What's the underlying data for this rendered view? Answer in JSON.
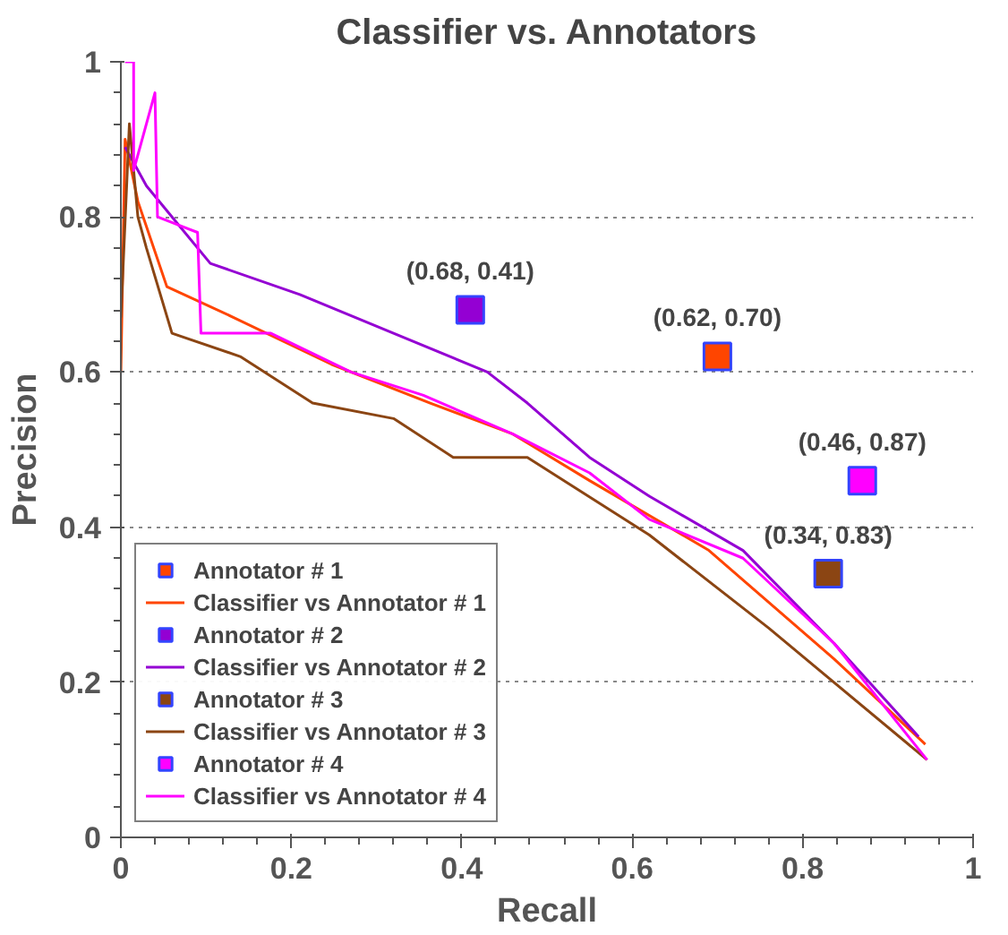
{
  "chart_data": {
    "type": "line",
    "title": "Classifier vs. Annotators",
    "xlabel": "Recall",
    "ylabel": "Precision",
    "xlim": [
      0,
      1
    ],
    "ylim": [
      0,
      1
    ],
    "xticks": [
      0,
      0.2,
      0.4,
      0.6,
      0.8,
      1
    ],
    "yticks": [
      0,
      0.2,
      0.4,
      0.6,
      0.8,
      1
    ],
    "grid": "y",
    "legend": "bottom left",
    "marker": "none",
    "line_style": "solid",
    "series": [
      {
        "name": "Annotator # 1",
        "type": "scatter",
        "marker": "square",
        "color": "#ff4500",
        "x": [
          0.7
        ],
        "values": [
          0.62
        ]
      },
      {
        "name": "Classifier vs Annotator # 1",
        "color": "#ff4500",
        "x": [
          0,
          0.005,
          0.02,
          0.054,
          0.133,
          0.247,
          0.363,
          0.46,
          0.55,
          0.69,
          0.837,
          0.944
        ],
        "values": [
          0.6,
          0.9,
          0.82,
          0.71,
          0.67,
          0.61,
          0.56,
          0.52,
          0.46,
          0.37,
          0.23,
          0.12
        ]
      },
      {
        "name": "Annotator # 2",
        "type": "scatter",
        "marker": "square",
        "color": "#9400d3",
        "x": [
          0.41
        ],
        "values": [
          0.68
        ]
      },
      {
        "name": "Classifier vs Annotator # 2",
        "color": "#9400d3",
        "x": [
          0.005,
          0.03,
          0.105,
          0.21,
          0.32,
          0.43,
          0.477,
          0.55,
          0.62,
          0.73,
          0.837,
          0.936
        ],
        "values": [
          0.89,
          0.84,
          0.74,
          0.7,
          0.65,
          0.6,
          0.56,
          0.49,
          0.44,
          0.37,
          0.25,
          0.13
        ]
      },
      {
        "name": "Annotator # 3",
        "type": "scatter",
        "marker": "square",
        "color": "#8b4513",
        "x": [
          0.83
        ],
        "values": [
          0.34
        ]
      },
      {
        "name": "Classifier vs Annotator # 3",
        "color": "#8b4513",
        "x": [
          0,
          0.01,
          0.02,
          0.03,
          0.06,
          0.14,
          0.225,
          0.32,
          0.39,
          0.477,
          0.62,
          0.76,
          0.946
        ],
        "values": [
          0.67,
          0.92,
          0.8,
          0.76,
          0.65,
          0.62,
          0.56,
          0.54,
          0.49,
          0.49,
          0.39,
          0.27,
          0.1
        ]
      },
      {
        "name": "Annotator # 4",
        "type": "scatter",
        "marker": "square",
        "color": "#ff00ff",
        "x": [
          0.87
        ],
        "values": [
          0.46
        ]
      },
      {
        "name": "Classifier vs Annotator # 4",
        "color": "#ff00ff",
        "x": [
          0.005,
          0.015,
          0.015,
          0.04,
          0.043,
          0.09,
          0.094,
          0.176,
          0.27,
          0.355,
          0.46,
          0.55,
          0.62,
          0.73,
          0.837,
          0.946
        ],
        "values": [
          1,
          1,
          0.86,
          0.96,
          0.8,
          0.78,
          0.65,
          0.65,
          0.6,
          0.57,
          0.52,
          0.47,
          0.41,
          0.36,
          0.25,
          0.1
        ]
      }
    ],
    "annotations": [
      {
        "text": "(0.68, 0.41)",
        "x": 0.41,
        "y": 0.68
      },
      {
        "text": "(0.62, 0.70)",
        "x": 0.7,
        "y": 0.62
      },
      {
        "text": "(0.46, 0.87)",
        "x": 0.87,
        "y": 0.46
      },
      {
        "text": "(0.34, 0.83)",
        "x": 0.83,
        "y": 0.34
      }
    ]
  }
}
